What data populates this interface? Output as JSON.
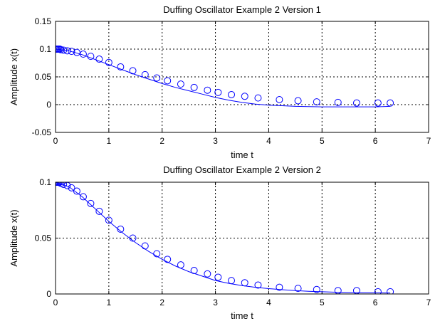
{
  "chart_data": [
    {
      "type": "line",
      "title": "Duffing Oscillator Example 2 Version 1",
      "xlabel": "time t",
      "ylabel": "Amplitude x(t)",
      "xlim": [
        0,
        7
      ],
      "ylim": [
        -0.05,
        0.15
      ],
      "xticks": [
        0,
        1,
        2,
        3,
        4,
        5,
        6,
        7
      ],
      "yticks": [
        -0.05,
        0,
        0.05,
        0.1,
        0.15
      ],
      "ytick_labels": [
        "-0.05",
        "0",
        "0.05",
        "0.1",
        "0.15"
      ],
      "grid": true,
      "series": [
        {
          "style": "line",
          "color": "#0000ff",
          "x": [
            0,
            0.25,
            0.5,
            0.75,
            1.0,
            1.25,
            1.5,
            1.75,
            2.0,
            2.25,
            2.5,
            2.75,
            3.0,
            3.25,
            3.5,
            3.75,
            4.0,
            4.25,
            4.5,
            4.75,
            5.0,
            5.25,
            5.5,
            5.75,
            6.0,
            6.28
          ],
          "y": [
            0.1,
            0.097,
            0.09,
            0.081,
            0.072,
            0.063,
            0.054,
            0.046,
            0.038,
            0.031,
            0.025,
            0.019,
            0.013,
            0.008,
            0.004,
            0.001,
            -0.001,
            -0.002,
            -0.003,
            -0.0035,
            -0.004,
            -0.004,
            -0.004,
            -0.004,
            -0.004,
            -0.003
          ]
        },
        {
          "style": "markers",
          "marker": "circle",
          "color": "#0000ff",
          "x": [
            0,
            0.02,
            0.04,
            0.06,
            0.08,
            0.1,
            0.15,
            0.22,
            0.3,
            0.4,
            0.52,
            0.66,
            0.82,
            1.0,
            1.22,
            1.45,
            1.68,
            1.9,
            2.1,
            2.35,
            2.6,
            2.85,
            3.05,
            3.3,
            3.55,
            3.8,
            4.2,
            4.55,
            4.9,
            5.3,
            5.65,
            6.05,
            6.28
          ],
          "y": [
            0.1,
            0.1,
            0.1,
            0.1,
            0.1,
            0.099,
            0.098,
            0.097,
            0.096,
            0.094,
            0.091,
            0.087,
            0.082,
            0.076,
            0.068,
            0.061,
            0.054,
            0.048,
            0.043,
            0.037,
            0.031,
            0.026,
            0.022,
            0.018,
            0.015,
            0.012,
            0.009,
            0.007,
            0.005,
            0.004,
            0.003,
            0.003,
            0.003
          ]
        }
      ]
    },
    {
      "type": "line",
      "title": "Duffing Oscillator Example 2 Version 2",
      "xlabel": "time t",
      "ylabel": "Amplitude x(t)",
      "xlim": [
        0,
        7
      ],
      "ylim": [
        0,
        0.1
      ],
      "xticks": [
        0,
        1,
        2,
        3,
        4,
        5,
        6,
        7
      ],
      "yticks": [
        0,
        0.05,
        0.1
      ],
      "ytick_labels": [
        "0",
        "0.05",
        "0.1"
      ],
      "grid": true,
      "series": [
        {
          "style": "line",
          "color": "#0000ff",
          "x": [
            0,
            0.25,
            0.5,
            0.75,
            1.0,
            1.25,
            1.5,
            1.75,
            2.0,
            2.25,
            2.5,
            2.75,
            3.0,
            3.25,
            3.5,
            3.75,
            4.0,
            4.25,
            4.5,
            4.75,
            5.0,
            5.25,
            5.5,
            5.75,
            6.0,
            6.28
          ],
          "y": [
            0.1,
            0.096,
            0.087,
            0.076,
            0.065,
            0.055,
            0.046,
            0.038,
            0.031,
            0.025,
            0.02,
            0.016,
            0.012,
            0.0095,
            0.0075,
            0.006,
            0.0048,
            0.0038,
            0.003,
            0.0024,
            0.002,
            0.0016,
            0.0013,
            0.0011,
            0.001,
            0.0009
          ]
        },
        {
          "style": "markers",
          "marker": "circle",
          "color": "#0000ff",
          "x": [
            0,
            0.02,
            0.04,
            0.06,
            0.08,
            0.1,
            0.15,
            0.22,
            0.3,
            0.4,
            0.52,
            0.66,
            0.82,
            1.0,
            1.22,
            1.45,
            1.68,
            1.9,
            2.1,
            2.35,
            2.6,
            2.85,
            3.05,
            3.3,
            3.55,
            3.8,
            4.2,
            4.55,
            4.9,
            5.3,
            5.65,
            6.05,
            6.28
          ],
          "y": [
            0.1,
            0.1,
            0.1,
            0.1,
            0.1,
            0.099,
            0.098,
            0.097,
            0.095,
            0.092,
            0.087,
            0.081,
            0.074,
            0.066,
            0.058,
            0.05,
            0.043,
            0.036,
            0.031,
            0.026,
            0.021,
            0.018,
            0.015,
            0.012,
            0.01,
            0.008,
            0.006,
            0.005,
            0.004,
            0.003,
            0.003,
            0.002,
            0.002
          ]
        }
      ]
    }
  ]
}
